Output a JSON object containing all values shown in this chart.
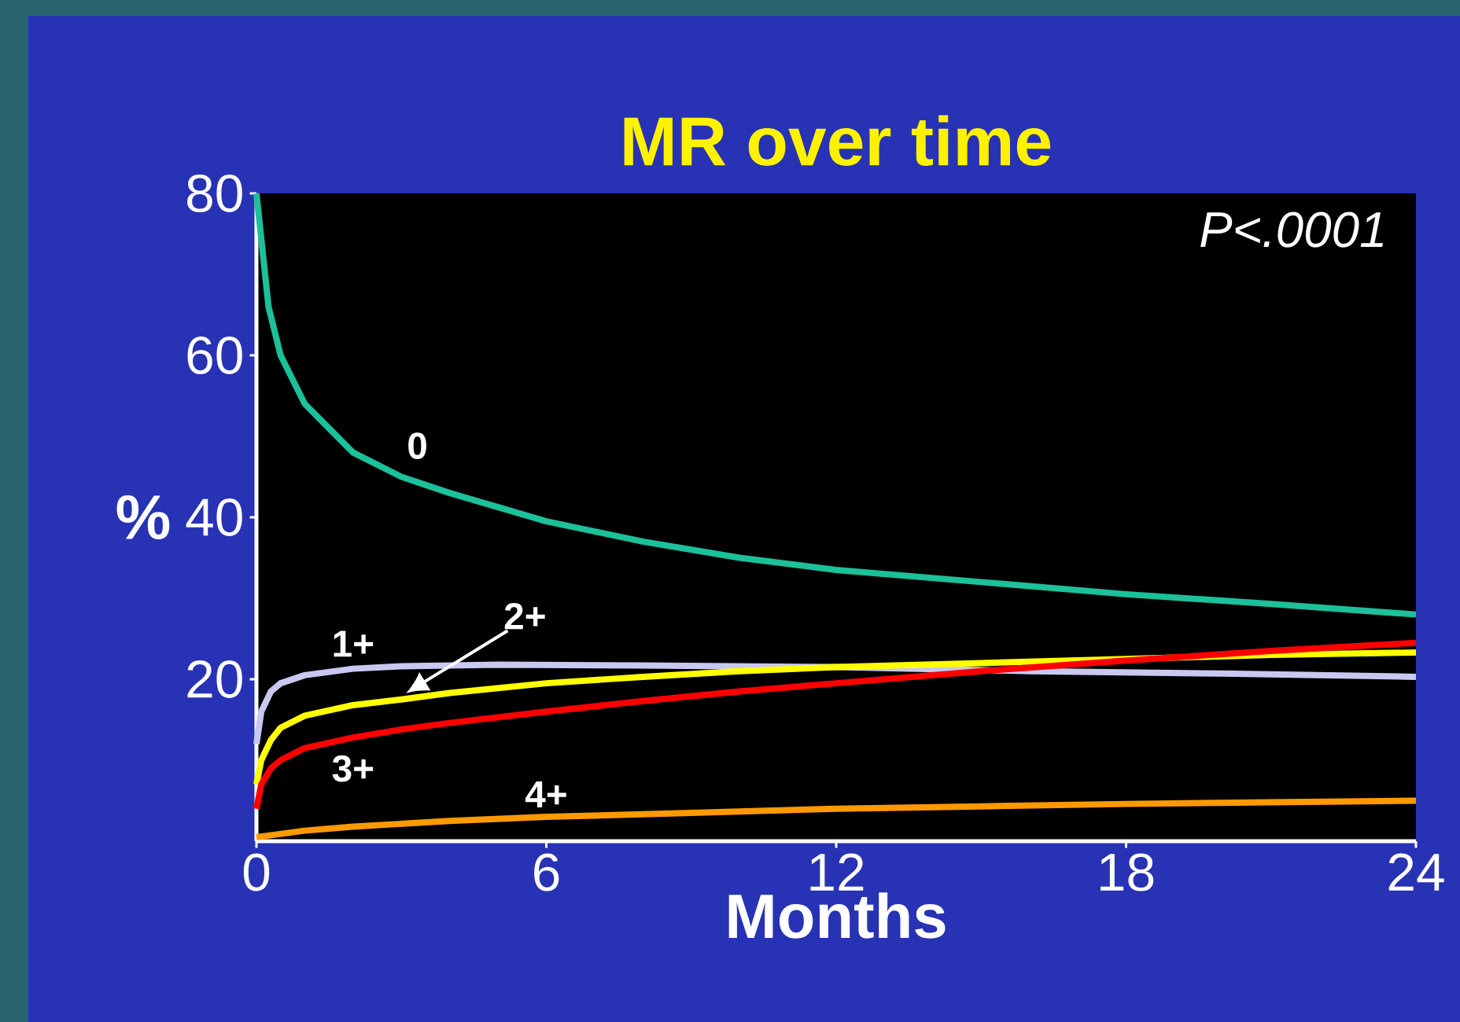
{
  "chart_data": {
    "type": "line",
    "title": "MR over time",
    "xlabel": "Months",
    "ylabel": "%",
    "xlim": [
      0,
      24
    ],
    "ylim": [
      0,
      80
    ],
    "xticks": [
      0,
      6,
      12,
      18,
      24
    ],
    "yticks": [
      20,
      40,
      60,
      80
    ],
    "annotations": [
      "P<.0001"
    ],
    "series": [
      {
        "name": "0",
        "color": "#1cc09a",
        "x": [
          0,
          0.25,
          0.5,
          1,
          2,
          3,
          4,
          6,
          8,
          10,
          12,
          15,
          18,
          21,
          24
        ],
        "values": [
          80,
          66,
          60,
          54,
          48,
          45,
          43,
          39.5,
          37,
          35,
          33.5,
          32,
          30.5,
          29.3,
          28
        ]
      },
      {
        "name": "1+",
        "color": "#c8c8f0",
        "x": [
          0,
          0.1,
          0.3,
          0.5,
          1,
          2,
          3,
          5,
          8,
          12,
          16,
          20,
          24
        ],
        "values": [
          12,
          16,
          18.5,
          19.5,
          20.5,
          21.3,
          21.6,
          21.8,
          21.7,
          21.5,
          21,
          20.7,
          20.3
        ]
      },
      {
        "name": "2+",
        "color": "#ffff00",
        "x": [
          0,
          0.1,
          0.3,
          0.5,
          1,
          2,
          3,
          4,
          6,
          8,
          10,
          12,
          15,
          18,
          21,
          24
        ],
        "values": [
          7,
          10,
          12.5,
          14,
          15.5,
          16.8,
          17.5,
          18.3,
          19.5,
          20.3,
          21,
          21.5,
          22,
          22.5,
          23,
          23.3
        ]
      },
      {
        "name": "3+",
        "color": "#ff0000",
        "x": [
          0,
          0.1,
          0.3,
          0.5,
          1,
          2,
          3,
          4,
          6,
          8,
          10,
          12,
          15,
          18,
          21,
          24
        ],
        "values": [
          4,
          7,
          9,
          10,
          11.5,
          12.8,
          13.8,
          14.6,
          16,
          17.3,
          18.5,
          19.5,
          21,
          22.3,
          23.5,
          24.5
        ]
      },
      {
        "name": "4+",
        "color": "#ff9900",
        "x": [
          0,
          1,
          2,
          4,
          6,
          9,
          12,
          15,
          18,
          21,
          24
        ],
        "values": [
          0.5,
          1.3,
          1.8,
          2.5,
          3,
          3.5,
          4,
          4.3,
          4.6,
          4.8,
          5
        ]
      }
    ]
  }
}
